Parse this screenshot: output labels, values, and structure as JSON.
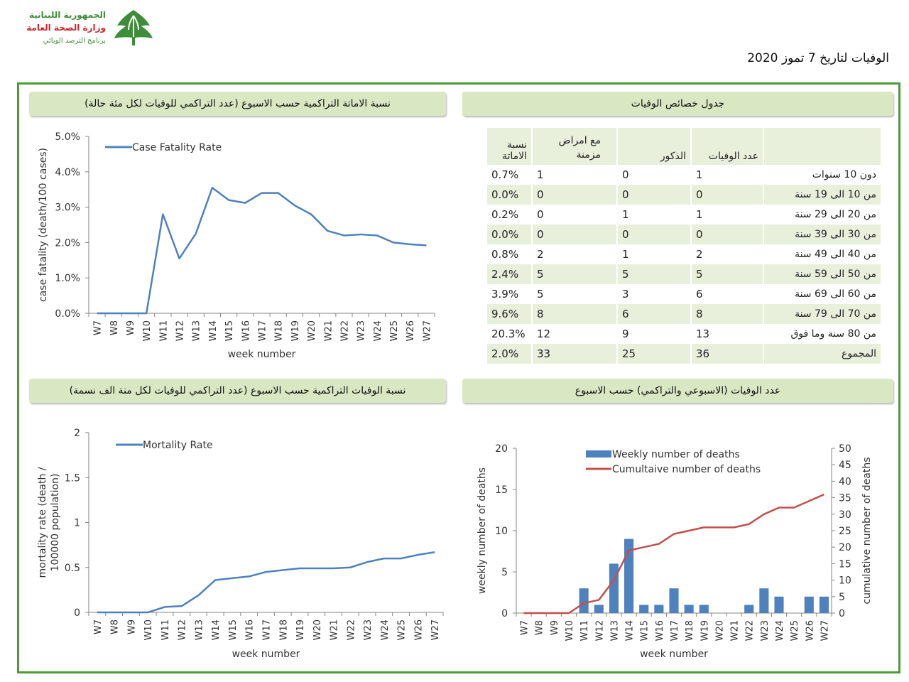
{
  "header": {
    "logo_lines": [
      "الجمهورية اللبنانية",
      "وزارة الصحة العامة",
      "برنامج الترصد الوبائي"
    ],
    "report_title": "الوفيات لتاريخ  7 تموز 2020"
  },
  "panels": {
    "cfr_title": "نسبة الاماتة التراكمية حسب الاسبوع (عدد التراكمي للوفيات لكل مئة حالة)",
    "table_title": "جدول خصائص الوفيات",
    "mr_title": "نسبة الوفيات التراكمية حسب الاسبوع (عدد التراكمي للوفيات لكل منة الف نسمة)",
    "deaths_title": "عدد الوفيات (الاسبوعي والتراكمي) حسب الاسبوع"
  },
  "colors": {
    "line": "#4f81bd",
    "bar": "#4f81bd",
    "cumulative": "#c0504d",
    "frame": "#4e9a38",
    "header_bg": "#d9e8c3",
    "row_alt": "#e8f0dc"
  },
  "chart_data": [
    {
      "type": "line",
      "x": [
        "W7",
        "W8",
        "W9",
        "W10",
        "W11",
        "W12",
        "W13",
        "W14",
        "W15",
        "W16",
        "W17",
        "W18",
        "W19",
        "W20",
        "W21",
        "W22",
        "W23",
        "W24",
        "W25",
        "W26",
        "W27"
      ],
      "series": [
        {
          "name": "Case Fatality Rate",
          "values": [
            0,
            0,
            0,
            0,
            2.8,
            1.55,
            2.25,
            3.55,
            3.2,
            3.12,
            3.4,
            3.4,
            3.05,
            2.8,
            2.33,
            2.2,
            2.23,
            2.2,
            2.0,
            1.95,
            1.92
          ]
        }
      ],
      "xlabel": "week number",
      "ylabel": "case fatality (death/100 cases)",
      "yticks": [
        "0.0%",
        "1.0%",
        "2.0%",
        "3.0%",
        "4.0%",
        "5.0%"
      ],
      "ylim": [
        0,
        5
      ],
      "legend": "top-left",
      "grid": false
    },
    {
      "type": "line",
      "x": [
        "W7",
        "W8",
        "W9",
        "W10",
        "W11",
        "W12",
        "W13",
        "W14",
        "W15",
        "W16",
        "W17",
        "W18",
        "W19",
        "W20",
        "W21",
        "W22",
        "W23",
        "W24",
        "W25",
        "W26",
        "W27"
      ],
      "series": [
        {
          "name": "Mortality Rate",
          "values": [
            0,
            0,
            0,
            0,
            0.06,
            0.07,
            0.19,
            0.36,
            0.38,
            0.4,
            0.45,
            0.47,
            0.49,
            0.49,
            0.49,
            0.5,
            0.56,
            0.6,
            0.6,
            0.64,
            0.67
          ]
        }
      ],
      "xlabel": "week number",
      "ylabel": "mortality rate (death / 100000 population)",
      "yticks": [
        "0",
        "0.5",
        "1",
        "1.5",
        "2"
      ],
      "ylim": [
        0,
        2
      ],
      "legend": "top-left",
      "grid": false
    },
    {
      "type": "bar",
      "x": [
        "W7",
        "W8",
        "W9",
        "W10",
        "W11",
        "W12",
        "W13",
        "W14",
        "W15",
        "W16",
        "W17",
        "W18",
        "W19",
        "W20",
        "W21",
        "W22",
        "W23",
        "W24",
        "W25",
        "W26",
        "W27"
      ],
      "series": [
        {
          "name": "Weekly number of deaths",
          "type": "bar",
          "axis": "left",
          "values": [
            0,
            0,
            0,
            0,
            3,
            1,
            6,
            9,
            1,
            1,
            3,
            1,
            1,
            0,
            0,
            1,
            3,
            2,
            0,
            2,
            2
          ]
        },
        {
          "name": "Cumultaive number of deaths",
          "type": "line",
          "axis": "right",
          "values": [
            0,
            0,
            0,
            0,
            3,
            4,
            10,
            19,
            20,
            21,
            24,
            25,
            26,
            26,
            26,
            27,
            30,
            32,
            32,
            34,
            36
          ]
        }
      ],
      "xlabel": "week number",
      "ylabel": "weekly number of deaths",
      "y2label": "cumulative number of deaths",
      "yticks": [
        "0",
        "5",
        "10",
        "15",
        "20"
      ],
      "y2ticks": [
        "0",
        "5",
        "10",
        "15",
        "20",
        "25",
        "30",
        "35",
        "40",
        "45",
        "50"
      ],
      "ylim": [
        0,
        20
      ],
      "y2lim": [
        0,
        50
      ],
      "legend": "top",
      "grid": false
    },
    {
      "type": "table",
      "columns": [
        "",
        "عدد الوفيات",
        "الذكور",
        "مع امراض مزمنة",
        "نسبة الاماتة"
      ],
      "rows": [
        [
          "دون 10 سنوات",
          "1",
          "0",
          "1",
          "0.7%"
        ],
        [
          "من 10 الى 19 سنة",
          "0",
          "0",
          "0",
          "0.0%"
        ],
        [
          "من 20 الى 29 سنة",
          "1",
          "1",
          "0",
          "0.2%"
        ],
        [
          "من 30 الى 39 سنة",
          "0",
          "0",
          "0",
          "0.0%"
        ],
        [
          "من 40 الى 49 سنة",
          "2",
          "1",
          "2",
          "0.8%"
        ],
        [
          "من 50 الى 59 سنة",
          "5",
          "5",
          "5",
          "2.4%"
        ],
        [
          "من 60 الى 69 سنة",
          "6",
          "3",
          "5",
          "3.9%"
        ],
        [
          "من 70 الى 79 سنة",
          "8",
          "6",
          "8",
          "9.6%"
        ],
        [
          "من 80 سنة وما فوق",
          "13",
          "9",
          "12",
          "20.3%"
        ],
        [
          "المجموع",
          "36",
          "25",
          "33",
          "2.0%"
        ]
      ]
    }
  ]
}
